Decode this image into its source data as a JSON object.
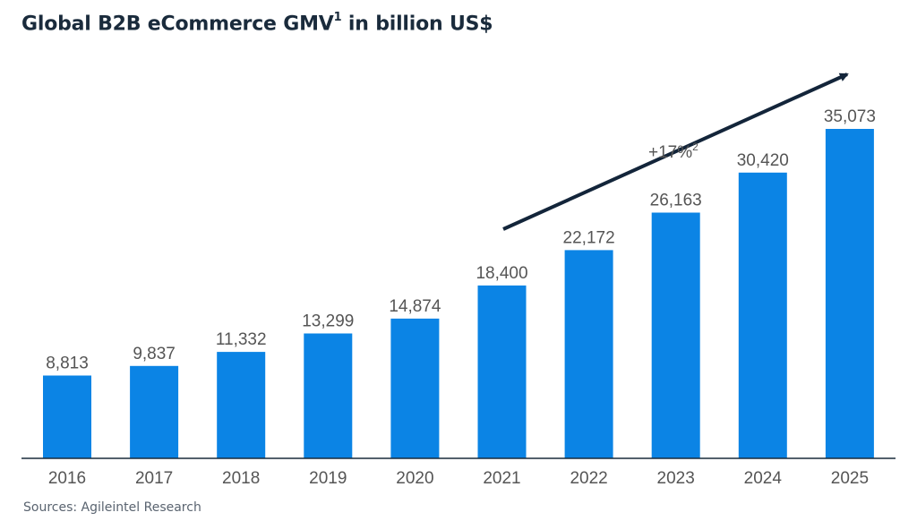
{
  "title": {
    "main": "Global B2B eCommerce GMV",
    "footnote_mark": "1",
    "suffix": " in billion US$"
  },
  "source": "Sources: Agileintel Research",
  "growth_annotation": {
    "text": "+17%",
    "footnote_mark": "2"
  },
  "colors": {
    "bar": "#0b84e5",
    "axis": "#1a2b3c",
    "arrow": "#13253a",
    "label": "#555555"
  },
  "chart_data": {
    "type": "bar",
    "categories": [
      "2016",
      "2017",
      "2018",
      "2019",
      "2020",
      "2021",
      "2022",
      "2023",
      "2024",
      "2025"
    ],
    "values": [
      8813,
      9837,
      11332,
      13299,
      14874,
      18400,
      22172,
      26163,
      30420,
      35073
    ],
    "value_labels": [
      "8,813",
      "9,837",
      "11,332",
      "13,299",
      "14,874",
      "18,400",
      "22,172",
      "26,163",
      "30,420",
      "35,073"
    ],
    "title": "Global B2B eCommerce GMV¹ in billion US$",
    "ylim": [
      0,
      35073
    ],
    "grid": false,
    "legend": "none"
  }
}
